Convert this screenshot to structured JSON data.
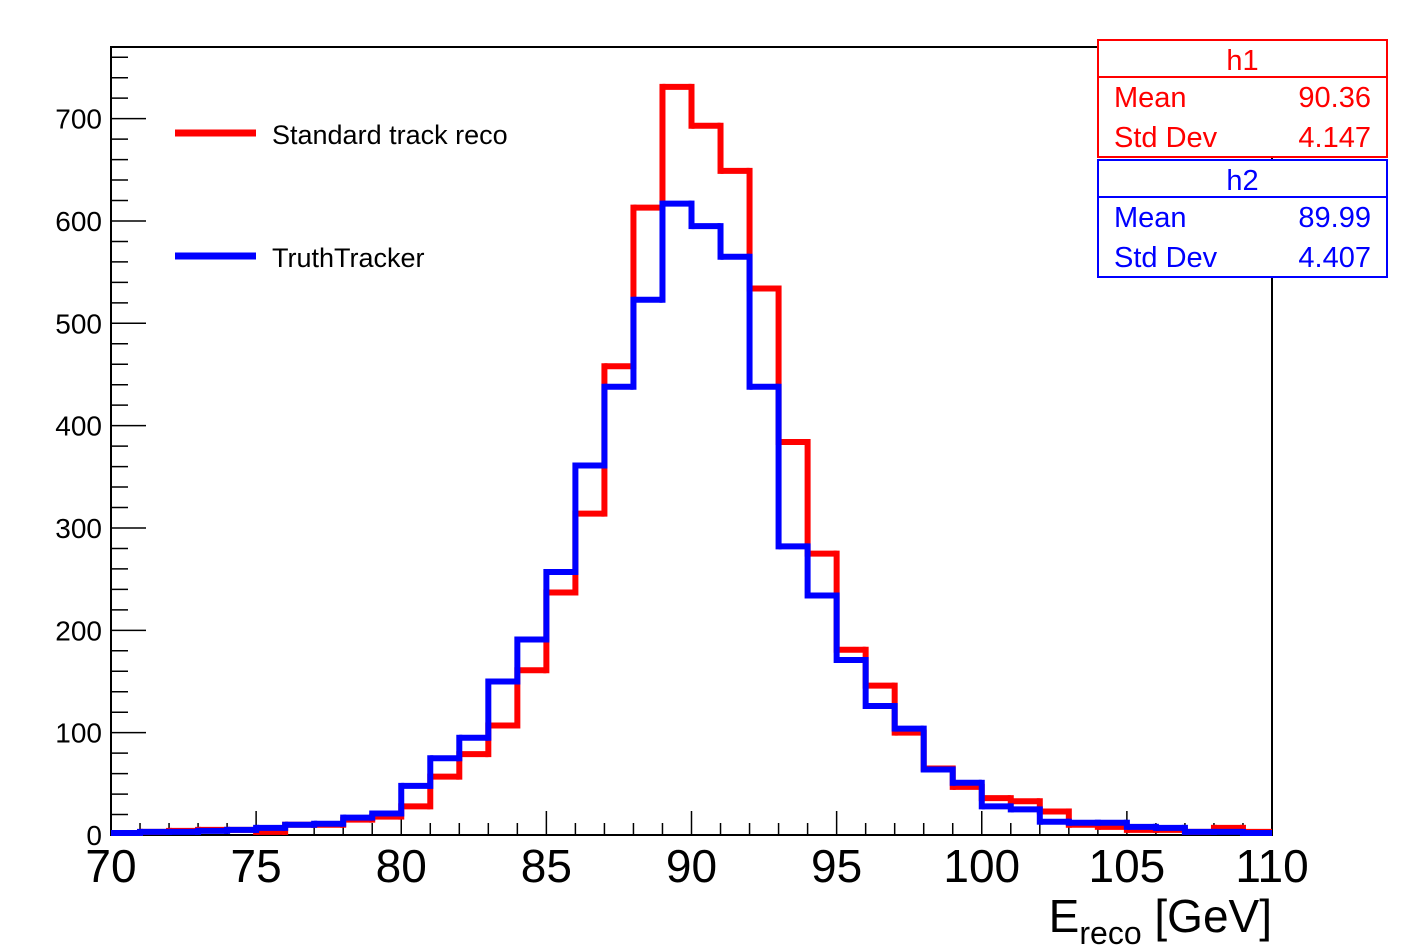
{
  "chart_data": {
    "type": "histogram",
    "xlabel_main": "E",
    "xlabel_sub": "reco",
    "xlabel_unit": " [GeV]",
    "xlim": [
      70,
      110
    ],
    "ylim": [
      0,
      770
    ],
    "x_ticks": [
      "70",
      "75",
      "80",
      "85",
      "90",
      "95",
      "100",
      "105",
      "110"
    ],
    "y_ticks": [
      "0",
      "100",
      "200",
      "300",
      "400",
      "500",
      "600",
      "700"
    ],
    "bin_width": 1,
    "series": [
      {
        "name": "Standard track reco",
        "stat_title": "h1",
        "mean": "90.36",
        "std_dev": "4.147",
        "color": "#ff0000",
        "values": [
          2,
          3,
          4,
          5,
          5,
          3,
          10,
          10,
          15,
          18,
          28,
          57,
          79,
          107,
          161,
          237,
          314,
          458,
          613,
          731,
          693,
          649,
          534,
          384,
          275,
          181,
          146,
          100,
          65,
          47,
          36,
          33,
          23,
          10,
          8,
          5,
          5,
          3,
          7,
          3
        ]
      },
      {
        "name": "TruthTracker",
        "stat_title": "h2",
        "mean": "89.99",
        "std_dev": "4.407",
        "color": "#0000ff",
        "values": [
          2,
          3,
          3,
          4,
          5,
          7,
          10,
          11,
          17,
          21,
          48,
          75,
          95,
          150,
          191,
          257,
          361,
          438,
          523,
          617,
          595,
          565,
          438,
          282,
          234,
          171,
          126,
          104,
          64,
          51,
          28,
          25,
          13,
          12,
          12,
          8,
          7,
          3,
          3,
          2
        ]
      }
    ],
    "legend_position": "top-left"
  },
  "stats_labels": {
    "mean": "Mean",
    "std_dev": "Std Dev"
  }
}
